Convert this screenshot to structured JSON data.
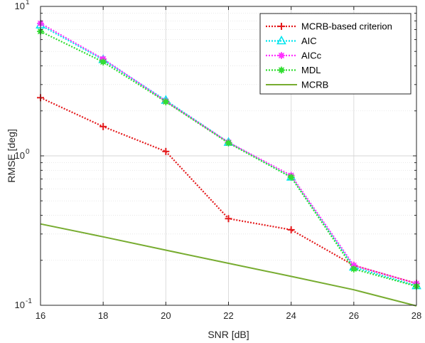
{
  "chart_data": {
    "type": "line",
    "xlabel": "SNR [dB]",
    "ylabel": "RMSE [deg]",
    "xlim": [
      16,
      28
    ],
    "ylim": [
      0.1,
      10
    ],
    "yscale": "log",
    "grid": true,
    "legend_position": "top-right",
    "x_ticks": [
      "16",
      "18",
      "20",
      "22",
      "24",
      "26",
      "28"
    ],
    "y_tick_labels": [
      {
        "value": 0.1,
        "base": "10",
        "exp": "-1"
      },
      {
        "value": 1,
        "base": "10",
        "exp": "0"
      },
      {
        "value": 10,
        "base": "10",
        "exp": "1"
      }
    ],
    "series": [
      {
        "name": "MCRB-based criterion",
        "color": "#e41a1c",
        "marker": "plus",
        "style": "dotted",
        "x": [
          16,
          18,
          20,
          22,
          24,
          26,
          28
        ],
        "y": [
          2.45,
          1.57,
          1.07,
          0.38,
          0.32,
          0.185,
          0.14
        ]
      },
      {
        "name": "AIC",
        "color": "#00e5ee",
        "marker": "triangle",
        "style": "dotted",
        "x": [
          16,
          18,
          20,
          22,
          24,
          26,
          28
        ],
        "y": [
          7.5,
          4.4,
          2.35,
          1.23,
          0.72,
          0.18,
          0.135
        ]
      },
      {
        "name": "AICc",
        "color": "#ff33ff",
        "marker": "star",
        "style": "dotted",
        "x": [
          16,
          18,
          20,
          22,
          24,
          26,
          28
        ],
        "y": [
          7.7,
          4.45,
          2.32,
          1.23,
          0.74,
          0.185,
          0.14
        ]
      },
      {
        "name": "MDL",
        "color": "#33dd33",
        "marker": "star",
        "style": "dotted",
        "x": [
          16,
          18,
          20,
          22,
          24,
          26,
          28
        ],
        "y": [
          6.8,
          4.25,
          2.3,
          1.22,
          0.72,
          0.175,
          0.134
        ]
      },
      {
        "name": "MCRB",
        "color": "#77ac30",
        "marker": "none",
        "style": "solid",
        "x": [
          16,
          18,
          20,
          22,
          24,
          26,
          28
        ],
        "y": [
          0.35,
          0.287,
          0.234,
          0.191,
          0.156,
          0.127,
          0.099
        ]
      }
    ]
  }
}
